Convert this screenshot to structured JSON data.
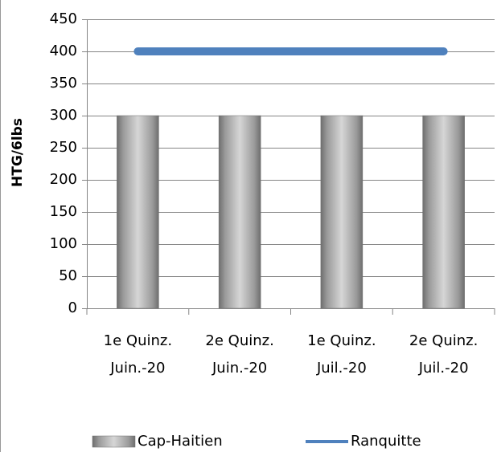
{
  "chart_data": {
    "type": "bar",
    "y_label": "HTG/6lbs",
    "categories": [
      [
        "1e Quinz.",
        "Juin.-20"
      ],
      [
        "2e Quinz.",
        "Juin.-20"
      ],
      [
        "1e Quinz.",
        "Juil.-20"
      ],
      [
        "2e Quinz.",
        "Juil.-20"
      ]
    ],
    "series": [
      {
        "name": "Cap-Haitien",
        "type": "bar",
        "color": "#8c8c8c",
        "values": [
          300,
          300,
          300,
          300
        ]
      },
      {
        "name": "Ranquitte",
        "type": "line",
        "color": "#4f81bd",
        "values": [
          400,
          400,
          400,
          400
        ]
      }
    ],
    "ylim": [
      0,
      450
    ],
    "yticks": [
      0,
      50,
      100,
      150,
      200,
      250,
      300,
      350,
      400,
      450
    ],
    "grid": true,
    "legend": "bottom"
  }
}
